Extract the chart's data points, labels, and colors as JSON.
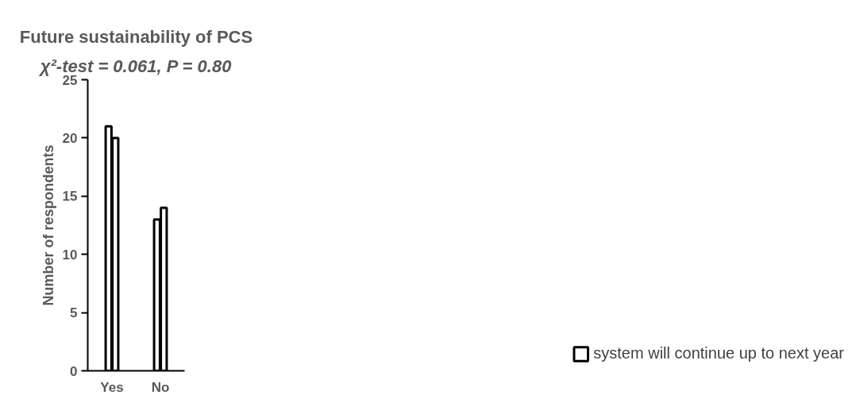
{
  "chart_data": {
    "type": "bar",
    "title": "Future sustainability of PCS",
    "subtitle": "χ²-test = 0.061, P = 0.80",
    "ylabel": "Number of respondents",
    "categories": [
      "Yes",
      "No"
    ],
    "series": [
      {
        "name": "system will continue up to next year",
        "color": "#ffffff",
        "values": [
          21,
          13
        ]
      },
      {
        "color": "#ffffff",
        "values": [
          20,
          14
        ]
      }
    ],
    "ylim": [
      0,
      25
    ],
    "yticks": [
      0,
      5,
      10,
      15,
      20,
      25
    ],
    "grid": false,
    "legend": "bottom right"
  }
}
